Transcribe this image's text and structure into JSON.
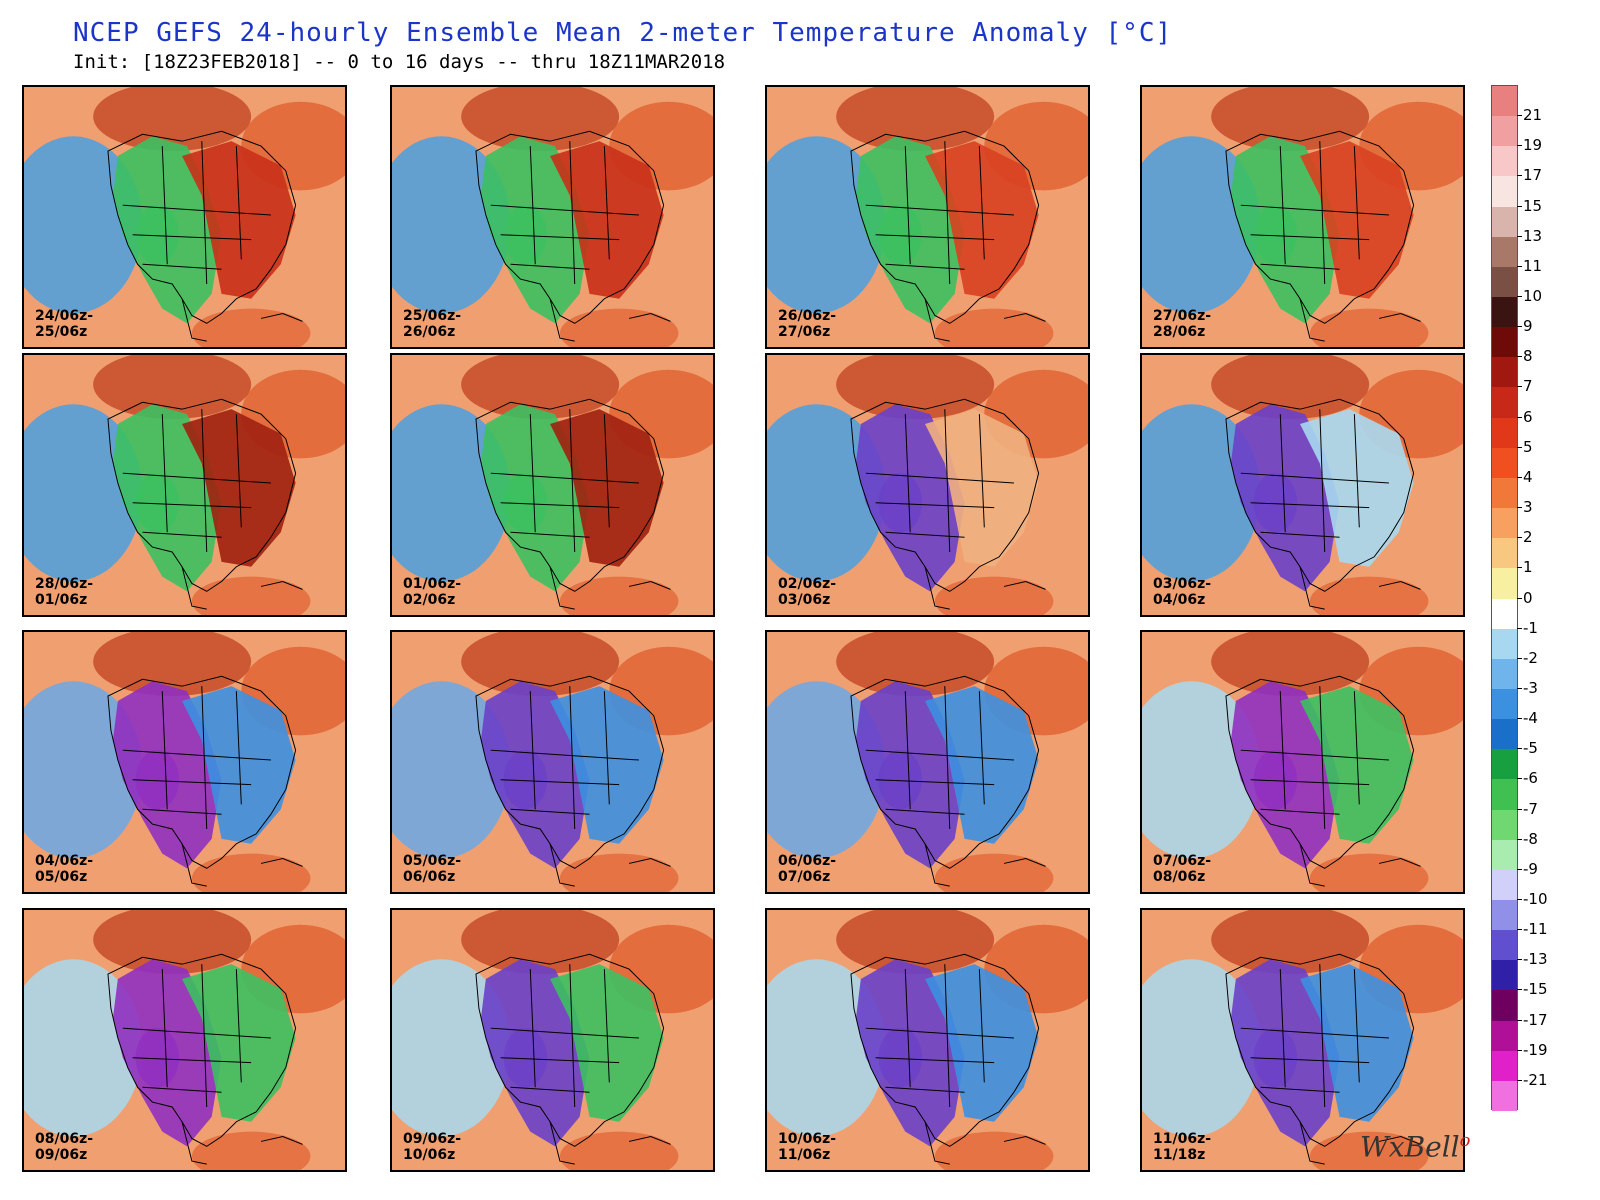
{
  "header": {
    "title": "NCEP GEFS 24-hourly Ensemble Mean 2-meter Temperature Anomaly [°C]",
    "subtitle": "Init: [18Z23FEB2018] -- 0 to 16 days -- thru 18Z11MAR2018"
  },
  "panels": [
    {
      "line1": "24/06z-",
      "line2": "25/06z",
      "west": "#4aa0e0",
      "center": "#3cc060",
      "east": "#c83018"
    },
    {
      "line1": "25/06z-",
      "line2": "26/06z",
      "west": "#4aa0e0",
      "center": "#3cc060",
      "east": "#c83018"
    },
    {
      "line1": "26/06z-",
      "line2": "27/06z",
      "west": "#4aa0e0",
      "center": "#3cc060",
      "east": "#d84020"
    },
    {
      "line1": "27/06z-",
      "line2": "28/06z",
      "west": "#4aa0e0",
      "center": "#3cc060",
      "east": "#d84020"
    },
    {
      "line1": "28/06z-",
      "line2": "01/06z",
      "west": "#4aa0e0",
      "center": "#3cc060",
      "east": "#a02010"
    },
    {
      "line1": "01/06z-",
      "line2": "02/06z",
      "west": "#4aa0e0",
      "center": "#3cc060",
      "east": "#a02010"
    },
    {
      "line1": "02/06z-",
      "line2": "03/06z",
      "west": "#4aa0e0",
      "center": "#6a40c8",
      "east": "#f0b080"
    },
    {
      "line1": "03/06z-",
      "line2": "04/06z",
      "west": "#4aa0e0",
      "center": "#6a40c8",
      "east": "#a8d8f0"
    },
    {
      "line1": "04/06z-",
      "line2": "05/06z",
      "west": "#6aa8e8",
      "center": "#9030c0",
      "east": "#3c90e0"
    },
    {
      "line1": "05/06z-",
      "line2": "06/06z",
      "west": "#6aa8e8",
      "center": "#6a40c8",
      "east": "#3c90e0"
    },
    {
      "line1": "06/06z-",
      "line2": "07/06z",
      "west": "#6aa8e8",
      "center": "#6a40c8",
      "east": "#3c90e0"
    },
    {
      "line1": "07/06z-",
      "line2": "08/06z",
      "west": "#a8d8f0",
      "center": "#9030c0",
      "east": "#3cc060"
    },
    {
      "line1": "08/06z-",
      "line2": "09/06z",
      "west": "#a8d8f0",
      "center": "#9030c0",
      "east": "#3cc060"
    },
    {
      "line1": "09/06z-",
      "line2": "10/06z",
      "west": "#a8d8f0",
      "center": "#6a40c8",
      "east": "#3cc060"
    },
    {
      "line1": "10/06z-",
      "line2": "11/06z",
      "west": "#a8d8f0",
      "center": "#6a40c8",
      "east": "#3c90e0"
    },
    {
      "line1": "11/06z-",
      "line2": "11/18z",
      "west": "#a8d8f0",
      "center": "#6a40c8",
      "east": "#3c90e0"
    }
  ],
  "legend": {
    "ticks": [
      "21",
      "19",
      "17",
      "15",
      "13",
      "11",
      "10",
      "9",
      "8",
      "7",
      "6",
      "5",
      "4",
      "3",
      "2",
      "1",
      "0",
      "-1",
      "-2",
      "-3",
      "-4",
      "-5",
      "-6",
      "-7",
      "-8",
      "-9",
      "-10",
      "-11",
      "-13",
      "-15",
      "-17",
      "-19",
      "-21"
    ],
    "colors": [
      "#e88080",
      "#f0a0a0",
      "#f8c8c8",
      "#f8e4e0",
      "#d8b4ac",
      "#a87868",
      "#7a5044",
      "#3a1410",
      "#6e0a08",
      "#a01810",
      "#c82818",
      "#e03818",
      "#f05020",
      "#f07838",
      "#f8a060",
      "#f8c880",
      "#f8f0a0",
      "#ffffff",
      "#a8d8f0",
      "#70b4ec",
      "#3c90e0",
      "#1a70c8",
      "#18a040",
      "#40c050",
      "#70d870",
      "#a8ecb0",
      "#d0d0f8",
      "#9090e8",
      "#6050d0",
      "#3020a8",
      "#700060",
      "#b01098",
      "#e020c8",
      "#f070e0"
    ]
  },
  "brand": {
    "name": "WxBell"
  }
}
